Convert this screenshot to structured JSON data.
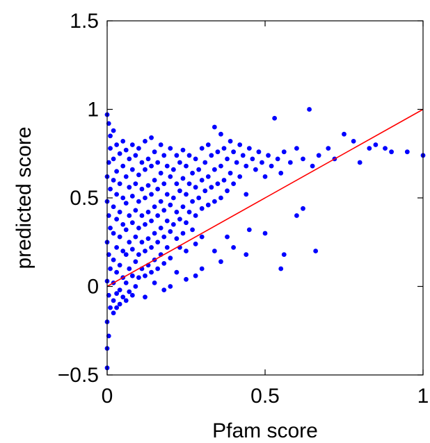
{
  "chart_data": {
    "type": "scatter",
    "title": "",
    "xlabel": "Pfam score",
    "ylabel": "predicted score",
    "xlim": [
      0,
      1
    ],
    "ylim": [
      -0.5,
      1.5
    ],
    "xticks": [
      0,
      0.5,
      1
    ],
    "xtick_labels": [
      "0",
      "0.5",
      "1"
    ],
    "yticks": [
      -0.5,
      0,
      0.5,
      1,
      1.5
    ],
    "ytick_labels": [
      "−0.5",
      "0",
      "0.5",
      "1",
      "1.5"
    ],
    "grid": false,
    "marker_color": "#0000ff",
    "line_color": "#ff0000",
    "series": [
      {
        "kind": "points",
        "points": [
          [
            0.0,
            0.97
          ],
          [
            0.005,
            0.92
          ],
          [
            0.01,
            0.85
          ],
          [
            0.01,
            0.78
          ],
          [
            0.005,
            0.7
          ],
          [
            0.0,
            0.62
          ],
          [
            0.01,
            0.55
          ],
          [
            0.0,
            0.48
          ],
          [
            0.005,
            0.4
          ],
          [
            0.01,
            0.33
          ],
          [
            0.0,
            0.25
          ],
          [
            0.005,
            0.18
          ],
          [
            0.01,
            0.1
          ],
          [
            0.0,
            0.03
          ],
          [
            0.005,
            -0.05
          ],
          [
            0.01,
            -0.12
          ],
          [
            0.0,
            -0.2
          ],
          [
            0.005,
            -0.28
          ],
          [
            0.0,
            -0.35
          ],
          [
            0.0,
            -0.46
          ],
          [
            0.02,
            0.88
          ],
          [
            0.02,
            0.72
          ],
          [
            0.02,
            0.6
          ],
          [
            0.02,
            0.45
          ],
          [
            0.02,
            0.3
          ],
          [
            0.02,
            0.15
          ],
          [
            0.02,
            0.02
          ],
          [
            0.02,
            -0.08
          ],
          [
            0.02,
            -0.15
          ],
          [
            0.03,
            0.8
          ],
          [
            0.03,
            0.65
          ],
          [
            0.03,
            0.52
          ],
          [
            0.03,
            0.38
          ],
          [
            0.03,
            0.22
          ],
          [
            0.03,
            0.08
          ],
          [
            0.03,
            -0.04
          ],
          [
            0.03,
            -0.12
          ],
          [
            0.04,
            0.75
          ],
          [
            0.04,
            0.58
          ],
          [
            0.04,
            0.42
          ],
          [
            0.04,
            0.28
          ],
          [
            0.04,
            0.12
          ],
          [
            0.04,
            -0.02
          ],
          [
            0.04,
            -0.1
          ],
          [
            0.05,
            0.82
          ],
          [
            0.05,
            0.68
          ],
          [
            0.05,
            0.5
          ],
          [
            0.05,
            0.35
          ],
          [
            0.05,
            0.2
          ],
          [
            0.05,
            0.05
          ],
          [
            0.05,
            -0.06
          ],
          [
            0.06,
            0.77
          ],
          [
            0.06,
            0.62
          ],
          [
            0.06,
            0.47
          ],
          [
            0.06,
            0.32
          ],
          [
            0.06,
            0.18
          ],
          [
            0.06,
            0.02
          ],
          [
            0.06,
            -0.08
          ],
          [
            0.07,
            0.72
          ],
          [
            0.07,
            0.56
          ],
          [
            0.07,
            0.4
          ],
          [
            0.07,
            0.25
          ],
          [
            0.07,
            0.1
          ],
          [
            0.07,
            -0.03
          ],
          [
            0.08,
            0.8
          ],
          [
            0.08,
            0.66
          ],
          [
            0.08,
            0.51
          ],
          [
            0.08,
            0.36
          ],
          [
            0.08,
            0.21
          ],
          [
            0.08,
            0.06
          ],
          [
            0.08,
            -0.05
          ],
          [
            0.09,
            0.74
          ],
          [
            0.09,
            0.58
          ],
          [
            0.09,
            0.43
          ],
          [
            0.09,
            0.28
          ],
          [
            0.09,
            0.14
          ],
          [
            0.09,
            0.0
          ],
          [
            0.1,
            0.78
          ],
          [
            0.1,
            0.63
          ],
          [
            0.1,
            0.48
          ],
          [
            0.1,
            0.33
          ],
          [
            0.1,
            0.18
          ],
          [
            0.1,
            0.05
          ],
          [
            0.11,
            0.7
          ],
          [
            0.11,
            0.55
          ],
          [
            0.11,
            0.4
          ],
          [
            0.11,
            0.25
          ],
          [
            0.11,
            0.1
          ],
          [
            0.12,
            0.82
          ],
          [
            0.12,
            0.66
          ],
          [
            0.12,
            0.5
          ],
          [
            0.12,
            0.35
          ],
          [
            0.12,
            0.2
          ],
          [
            0.12,
            0.06
          ],
          [
            0.13,
            0.72
          ],
          [
            0.13,
            0.57
          ],
          [
            0.13,
            0.42
          ],
          [
            0.13,
            0.27
          ],
          [
            0.13,
            0.12
          ],
          [
            0.14,
            0.84
          ],
          [
            0.14,
            0.68
          ],
          [
            0.14,
            0.52
          ],
          [
            0.14,
            0.37
          ],
          [
            0.14,
            0.22
          ],
          [
            0.14,
            0.08
          ],
          [
            0.15,
            0.76
          ],
          [
            0.15,
            0.6
          ],
          [
            0.15,
            0.45
          ],
          [
            0.15,
            0.3
          ],
          [
            0.15,
            0.15
          ],
          [
            0.16,
            0.7
          ],
          [
            0.16,
            0.55
          ],
          [
            0.16,
            0.4
          ],
          [
            0.16,
            0.25
          ],
          [
            0.16,
            0.1
          ],
          [
            0.17,
            0.8
          ],
          [
            0.17,
            0.64
          ],
          [
            0.17,
            0.48
          ],
          [
            0.17,
            0.33
          ],
          [
            0.17,
            0.18
          ],
          [
            0.18,
            0.74
          ],
          [
            0.18,
            0.58
          ],
          [
            0.18,
            0.43
          ],
          [
            0.18,
            0.28
          ],
          [
            0.18,
            0.13
          ],
          [
            0.19,
            0.68
          ],
          [
            0.19,
            0.52
          ],
          [
            0.19,
            0.37
          ],
          [
            0.19,
            0.22
          ],
          [
            0.2,
            0.78
          ],
          [
            0.2,
            0.62
          ],
          [
            0.2,
            0.46
          ],
          [
            0.2,
            0.31
          ],
          [
            0.2,
            0.16
          ],
          [
            0.21,
            0.66
          ],
          [
            0.21,
            0.5
          ],
          [
            0.21,
            0.35
          ],
          [
            0.22,
            0.74
          ],
          [
            0.22,
            0.58
          ],
          [
            0.22,
            0.42
          ],
          [
            0.22,
            0.27
          ],
          [
            0.23,
            0.7
          ],
          [
            0.23,
            0.54
          ],
          [
            0.23,
            0.38
          ],
          [
            0.23,
            0.22
          ],
          [
            0.24,
            0.77
          ],
          [
            0.24,
            0.61
          ],
          [
            0.24,
            0.45
          ],
          [
            0.24,
            0.3
          ],
          [
            0.25,
            0.68
          ],
          [
            0.25,
            0.52
          ],
          [
            0.25,
            0.36
          ],
          [
            0.25,
            0.2
          ],
          [
            0.26,
            0.74
          ],
          [
            0.26,
            0.58
          ],
          [
            0.26,
            0.42
          ],
          [
            0.27,
            0.64
          ],
          [
            0.27,
            0.48
          ],
          [
            0.27,
            0.32
          ],
          [
            0.28,
            0.72
          ],
          [
            0.28,
            0.56
          ],
          [
            0.28,
            0.4
          ],
          [
            0.28,
            0.24
          ],
          [
            0.29,
            0.66
          ],
          [
            0.29,
            0.5
          ],
          [
            0.3,
            0.78
          ],
          [
            0.3,
            0.6
          ],
          [
            0.3,
            0.44
          ],
          [
            0.3,
            0.28
          ],
          [
            0.31,
            0.7
          ],
          [
            0.31,
            0.54
          ],
          [
            0.32,
            0.8
          ],
          [
            0.32,
            0.62
          ],
          [
            0.32,
            0.46
          ],
          [
            0.33,
            0.74
          ],
          [
            0.33,
            0.56
          ],
          [
            0.34,
            0.9
          ],
          [
            0.34,
            0.66
          ],
          [
            0.34,
            0.48
          ],
          [
            0.35,
            0.76
          ],
          [
            0.35,
            0.58
          ],
          [
            0.36,
            0.86
          ],
          [
            0.36,
            0.68
          ],
          [
            0.36,
            0.5
          ],
          [
            0.37,
            0.78
          ],
          [
            0.37,
            0.6
          ],
          [
            0.38,
            0.72
          ],
          [
            0.38,
            0.54
          ],
          [
            0.39,
            0.82
          ],
          [
            0.39,
            0.64
          ],
          [
            0.4,
            0.76
          ],
          [
            0.4,
            0.58
          ],
          [
            0.41,
            0.7
          ],
          [
            0.42,
            0.8
          ],
          [
            0.42,
            0.62
          ],
          [
            0.43,
            0.74
          ],
          [
            0.44,
            0.68
          ],
          [
            0.44,
            0.52
          ],
          [
            0.45,
            0.78
          ],
          [
            0.46,
            0.72
          ],
          [
            0.47,
            0.66
          ],
          [
            0.48,
            0.76
          ],
          [
            0.49,
            0.7
          ],
          [
            0.5,
            0.62
          ],
          [
            0.51,
            0.74
          ],
          [
            0.52,
            0.68
          ],
          [
            0.53,
            0.95
          ],
          [
            0.54,
            0.72
          ],
          [
            0.55,
            0.64
          ],
          [
            0.56,
            0.76
          ],
          [
            0.58,
            0.7
          ],
          [
            0.6,
            0.78
          ],
          [
            0.62,
            0.72
          ],
          [
            0.64,
            1.0
          ],
          [
            0.65,
            0.68
          ],
          [
            0.67,
            0.74
          ],
          [
            0.7,
            0.78
          ],
          [
            0.72,
            0.72
          ],
          [
            0.75,
            0.86
          ],
          [
            0.78,
            0.82
          ],
          [
            0.8,
            0.7
          ],
          [
            0.83,
            0.78
          ],
          [
            0.85,
            0.8
          ],
          [
            0.88,
            0.78
          ],
          [
            0.9,
            0.76
          ],
          [
            0.95,
            0.76
          ],
          [
            1.0,
            0.74
          ],
          [
            0.34,
            0.2
          ],
          [
            0.3,
            0.1
          ],
          [
            0.28,
            0.06
          ],
          [
            0.36,
            0.14
          ],
          [
            0.4,
            0.22
          ],
          [
            0.44,
            0.18
          ],
          [
            0.5,
            0.3
          ],
          [
            0.55,
            0.1
          ],
          [
            0.56,
            0.18
          ],
          [
            0.6,
            0.4
          ],
          [
            0.62,
            0.44
          ],
          [
            0.66,
            0.2
          ],
          [
            0.45,
            0.32
          ],
          [
            0.38,
            0.28
          ],
          [
            0.25,
            0.04
          ],
          [
            0.22,
            0.08
          ],
          [
            0.18,
            -0.02
          ],
          [
            0.2,
            0.0
          ],
          [
            0.15,
            0.02
          ],
          [
            0.12,
            -0.06
          ]
        ]
      },
      {
        "kind": "line",
        "points": [
          [
            0,
            0
          ],
          [
            1,
            1
          ]
        ]
      }
    ]
  }
}
